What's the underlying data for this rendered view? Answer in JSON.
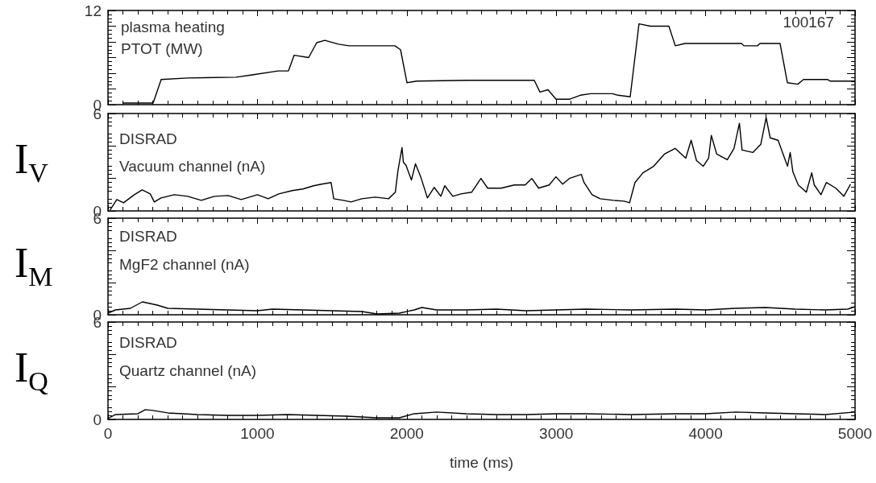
{
  "chart_data": [
    {
      "type": "line",
      "annotations": [
        "plasma heating",
        "PTOT (MW)",
        "100167"
      ],
      "xlim": [
        0,
        5000
      ],
      "xticks": [
        0,
        1000,
        2000,
        3000,
        4000,
        5000
      ],
      "ylim": [
        0,
        12
      ],
      "yticks": [
        0,
        {
          "value": 2,
          "label": null
        },
        {
          "value": 4,
          "label": null
        },
        {
          "value": 6,
          "label": null
        },
        {
          "value": 8,
          "label": null
        },
        {
          "value": 10,
          "label": null
        },
        12
      ],
      "tick_labels": "y",
      "marker": "none",
      "line_style": "solid",
      "series": [
        {
          "color": "#000000",
          "x": [
            97,
            302,
            356,
            534,
            858,
            966,
            1138,
            1208,
            1246,
            1343,
            1397,
            1451,
            1543,
            1613,
            1920,
            1958,
            2001,
            2066,
            2406,
            2853,
            2891,
            2945,
            2999,
            3091,
            3161,
            3231,
            3376,
            3414,
            3495,
            3554,
            3630,
            3754,
            3797,
            3862,
            4240,
            4256,
            4347,
            4364,
            4498,
            4547,
            4617,
            4655,
            4817,
            4833,
            5000
          ],
          "values": [
            0.2,
            0.2,
            3.2,
            3.4,
            3.5,
            3.8,
            4.3,
            4.3,
            6.3,
            6.0,
            7.9,
            8.2,
            7.7,
            7.5,
            7.5,
            7.0,
            2.8,
            3.0,
            3.1,
            3.1,
            1.6,
            1.9,
            0.7,
            0.7,
            1.2,
            1.4,
            1.4,
            1.2,
            1.0,
            10.3,
            10.0,
            10.0,
            7.5,
            7.8,
            7.8,
            7.5,
            7.5,
            7.8,
            7.8,
            2.8,
            2.6,
            3.2,
            3.2,
            3.0,
            3.0
          ]
        }
      ]
    },
    {
      "type": "line",
      "ylabel": "I$_{V}$",
      "annotations": [
        "DISRAD",
        "Vacuum channel (nA)"
      ],
      "xlim": [
        0,
        5000
      ],
      "xticks": [
        0,
        1000,
        2000,
        3000,
        4000,
        5000
      ],
      "ylim": [
        0,
        6
      ],
      "yticks": [
        0,
        {
          "value": 2,
          "label": null
        },
        {
          "value": 4,
          "label": null
        },
        6
      ],
      "tick_labels": "y",
      "marker": "none",
      "line_style": "solid",
      "series": [
        {
          "color": "#000000",
          "x": [
            14,
            59,
            104,
            176,
            229,
            283,
            310,
            355,
            444,
            534,
            624,
            713,
            803,
            892,
            1000,
            1072,
            1143,
            1233,
            1305,
            1376,
            1430,
            1493,
            1511,
            1574,
            1627,
            1699,
            1789,
            1878,
            1923,
            1941,
            1968,
            1977,
            1995,
            2031,
            2058,
            2093,
            2138,
            2183,
            2228,
            2254,
            2308,
            2362,
            2434,
            2496,
            2541,
            2631,
            2720,
            2792,
            2837,
            2882,
            2953,
            2998,
            3043,
            3088,
            3168,
            3186,
            3240,
            3294,
            3383,
            3455,
            3491,
            3527,
            3581,
            3652,
            3724,
            3796,
            3867,
            3903,
            3939,
            3984,
            4020,
            4038,
            4074,
            4145,
            4190,
            4226,
            4244,
            4316,
            4369,
            4405,
            4432,
            4485,
            4548,
            4566,
            4584,
            4620,
            4674,
            4710,
            4727,
            4772,
            4808,
            4871,
            4925,
            4970
          ],
          "values": [
            0.05,
            0.7,
            0.5,
            1.0,
            1.3,
            1.05,
            0.55,
            0.8,
            1.0,
            0.9,
            0.65,
            0.9,
            0.95,
            0.7,
            1.0,
            0.75,
            1.05,
            1.25,
            1.35,
            1.55,
            1.65,
            1.75,
            0.75,
            0.65,
            0.55,
            0.75,
            0.85,
            0.75,
            1.15,
            2.5,
            3.9,
            3.0,
            2.8,
            1.9,
            2.9,
            2.1,
            0.8,
            1.45,
            0.9,
            1.55,
            0.9,
            1.05,
            1.15,
            2.0,
            1.4,
            1.4,
            1.6,
            1.6,
            2.0,
            1.4,
            1.6,
            2.1,
            1.65,
            2.0,
            2.25,
            1.75,
            1.0,
            0.75,
            0.65,
            0.6,
            0.5,
            1.75,
            2.35,
            2.75,
            3.5,
            3.85,
            3.25,
            4.35,
            3.1,
            2.75,
            3.25,
            4.65,
            3.5,
            3.15,
            3.85,
            5.4,
            3.75,
            3.6,
            4.1,
            5.75,
            4.5,
            4.35,
            2.75,
            3.6,
            2.4,
            1.6,
            1.15,
            2.35,
            1.6,
            1.0,
            1.75,
            1.4,
            0.9,
            1.65
          ]
        }
      ]
    },
    {
      "type": "line",
      "ylabel": "I$_{M}$",
      "annotations": [
        "DISRAD",
        "MgF2 channel (nA)"
      ],
      "xlim": [
        0,
        5000
      ],
      "xticks": [
        0,
        1000,
        2000,
        3000,
        4000,
        5000
      ],
      "ylim": [
        0,
        6
      ],
      "yticks": [
        0,
        {
          "value": 2,
          "label": null
        },
        {
          "value": 4,
          "label": null
        },
        6
      ],
      "tick_labels": "y",
      "marker": "none",
      "line_style": "solid",
      "series": [
        {
          "color": "#000000",
          "x": [
            0,
            50,
            150,
            230,
            280,
            330,
            400,
            600,
            800,
            1000,
            1100,
            1300,
            1500,
            1700,
            1800,
            1950,
            2050,
            2100,
            2200,
            2400,
            2600,
            2800,
            3000,
            3200,
            3500,
            3800,
            4000,
            4200,
            4400,
            4600,
            4800,
            4950,
            5000
          ],
          "values": [
            0.1,
            0.3,
            0.4,
            0.8,
            0.7,
            0.6,
            0.4,
            0.35,
            0.3,
            0.25,
            0.35,
            0.3,
            0.25,
            0.2,
            0.05,
            0.1,
            0.3,
            0.45,
            0.3,
            0.3,
            0.35,
            0.25,
            0.3,
            0.35,
            0.3,
            0.35,
            0.3,
            0.4,
            0.45,
            0.35,
            0.3,
            0.35,
            0.5
          ]
        }
      ]
    },
    {
      "type": "line",
      "ylabel": "I$_{Q}$",
      "xlabel": "time (ms)",
      "annotations": [
        "DISRAD",
        "Quartz channel (nA)"
      ],
      "xlim": [
        0,
        5000
      ],
      "xticks": [
        0,
        1000,
        2000,
        3000,
        4000,
        5000
      ],
      "ylim": [
        0,
        6
      ],
      "yticks": [
        0,
        {
          "value": 2,
          "label": null
        },
        {
          "value": 4,
          "label": null
        },
        6
      ],
      "marker": "none",
      "line_style": "solid",
      "series": [
        {
          "color": "#000000",
          "x": [
            0,
            50,
            200,
            250,
            300,
            400,
            600,
            800,
            1000,
            1200,
            1400,
            1600,
            1800,
            1950,
            2050,
            2200,
            2400,
            2600,
            2800,
            3000,
            3200,
            3500,
            3800,
            4000,
            4200,
            4400,
            4600,
            4800,
            5000
          ],
          "values": [
            0.05,
            0.3,
            0.35,
            0.6,
            0.55,
            0.4,
            0.3,
            0.25,
            0.25,
            0.3,
            0.25,
            0.2,
            0.1,
            0.1,
            0.35,
            0.45,
            0.35,
            0.3,
            0.3,
            0.35,
            0.35,
            0.3,
            0.35,
            0.35,
            0.45,
            0.4,
            0.35,
            0.3,
            0.45
          ]
        }
      ]
    }
  ]
}
